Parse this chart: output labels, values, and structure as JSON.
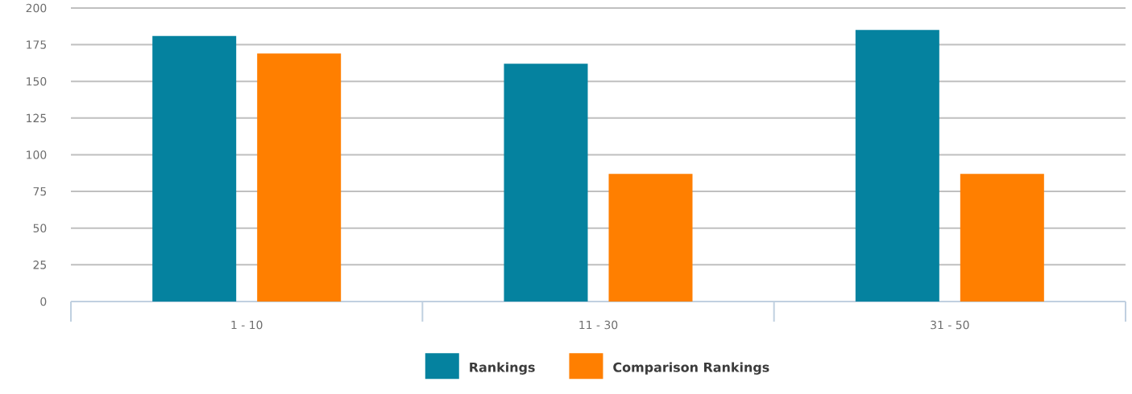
{
  "chart_data": {
    "type": "bar",
    "categories": [
      "1 - 10",
      "11 - 30",
      "31 - 50"
    ],
    "series": [
      {
        "name": "Rankings",
        "color": "#05829f",
        "values": [
          181,
          162,
          185
        ]
      },
      {
        "name": "Comparison Rankings",
        "color": "#ff7f00",
        "values": [
          169,
          87,
          87
        ]
      }
    ],
    "ylim": [
      0,
      200
    ],
    "yticks": [
      0,
      25,
      50,
      75,
      100,
      125,
      150,
      175,
      200
    ],
    "grid": "y",
    "legend": "bottom"
  }
}
